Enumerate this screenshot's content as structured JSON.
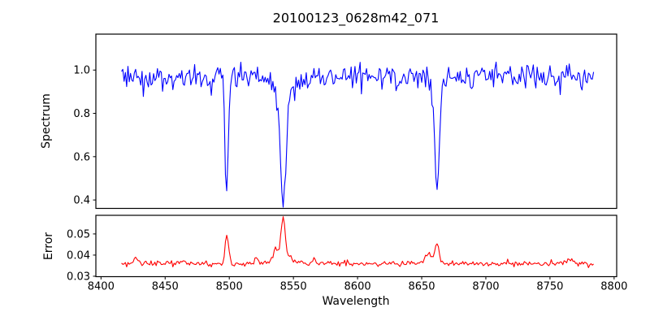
{
  "chart_data": {
    "type": "line",
    "title": "20100123_0628m42_071",
    "xlabel": "Wavelength",
    "xlim": [
      8396,
      8802
    ],
    "xticks": [
      {
        "v": 8400,
        "label": "8400"
      },
      {
        "v": 8450,
        "label": "8450"
      },
      {
        "v": 8500,
        "label": "8500"
      },
      {
        "v": 8550,
        "label": "8550"
      },
      {
        "v": 8600,
        "label": "8600"
      },
      {
        "v": 8650,
        "label": "8650"
      },
      {
        "v": 8700,
        "label": "8700"
      },
      {
        "v": 8750,
        "label": "8750"
      },
      {
        "v": 8800,
        "label": "8800"
      }
    ],
    "x_start": 8416,
    "x_end": 8784,
    "x_step": 1,
    "seed": 3,
    "axis_color": "#000000",
    "legend": "none",
    "grid": false,
    "panels": [
      {
        "name": "spectrum",
        "ylabel": "Spectrum",
        "color": "#0000ff",
        "ylim": [
          0.361,
          1.166
        ],
        "yticks": [
          {
            "v": 0.4,
            "label": "0.4"
          },
          {
            "v": 0.6,
            "label": "0.6"
          },
          {
            "v": 0.8,
            "label": "0.8"
          },
          {
            "v": 1.0,
            "label": "1.0"
          }
        ],
        "continuum": 0.97,
        "noise_sigma": 0.03,
        "absorption_lines": [
          {
            "center": 8498,
            "depth": 0.5,
            "sigma": 1.3
          },
          {
            "center": 8542,
            "depth": 0.48,
            "sigma": 2.0
          },
          {
            "center": 8542,
            "depth": 0.12,
            "sigma": 6.0
          },
          {
            "center": 8662,
            "depth": 0.47,
            "sigma": 1.8
          },
          {
            "center": 8662,
            "depth": 0.05,
            "sigma": 5.0
          }
        ],
        "key_points": [
          {
            "x": 8416,
            "y": 0.97
          },
          {
            "x": 8498,
            "y": 0.47
          },
          {
            "x": 8542,
            "y": 0.38
          },
          {
            "x": 8600,
            "y": 0.97
          },
          {
            "x": 8662,
            "y": 0.44
          },
          {
            "x": 8784,
            "y": 0.97
          }
        ]
      },
      {
        "name": "error",
        "ylabel": "Error",
        "color": "#ff0000",
        "ylim": [
          0.0298,
          0.0588
        ],
        "yticks": [
          {
            "v": 0.03,
            "label": "0.03"
          },
          {
            "v": 0.04,
            "label": "0.04"
          },
          {
            "v": 0.05,
            "label": "0.05"
          }
        ],
        "baseline": 0.036,
        "noise_sigma": 0.0007,
        "spikes": [
          {
            "center": 8427,
            "height": 0.003,
            "sigma": 1.5
          },
          {
            "center": 8464,
            "height": 0.0015,
            "sigma": 1.5
          },
          {
            "center": 8498,
            "height": 0.0135,
            "sigma": 1.3
          },
          {
            "center": 8521,
            "height": 0.003,
            "sigma": 1.2
          },
          {
            "center": 8536,
            "height": 0.0055,
            "sigma": 1.5
          },
          {
            "center": 8542,
            "height": 0.019,
            "sigma": 1.6
          },
          {
            "center": 8542,
            "height": 0.003,
            "sigma": 6.0
          },
          {
            "center": 8566,
            "height": 0.003,
            "sigma": 1.5
          },
          {
            "center": 8655,
            "height": 0.0045,
            "sigma": 2.5
          },
          {
            "center": 8662,
            "height": 0.01,
            "sigma": 1.6
          },
          {
            "center": 8766,
            "height": 0.0028,
            "sigma": 2.0
          }
        ],
        "key_points": [
          {
            "x": 8416,
            "y": 0.036
          },
          {
            "x": 8498,
            "y": 0.05
          },
          {
            "x": 8542,
            "y": 0.058
          },
          {
            "x": 8600,
            "y": 0.036
          },
          {
            "x": 8662,
            "y": 0.046
          },
          {
            "x": 8784,
            "y": 0.035
          }
        ]
      }
    ]
  }
}
